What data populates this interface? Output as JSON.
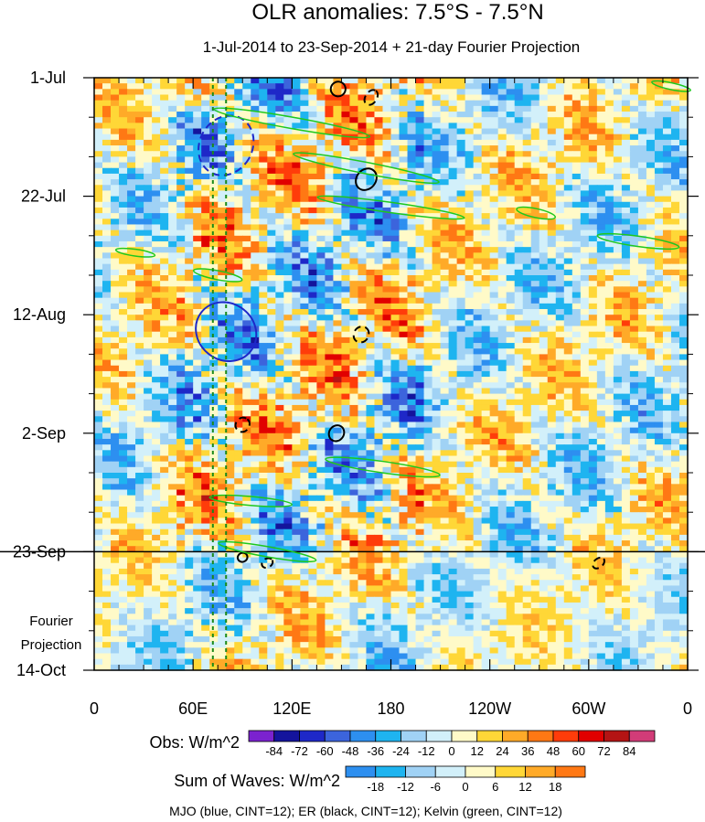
{
  "chart_data": {
    "type": "heatmap",
    "title": "OLR anomalies: 7.5°S - 7.5°N",
    "subtitle": "1-Jul-2014 to 23-Sep-2014 + 21-day Fourier Projection",
    "xlabel": "",
    "ylabel": "",
    "x_ticks": [
      {
        "lon": 0,
        "label": "0"
      },
      {
        "lon": 60,
        "label": "60E"
      },
      {
        "lon": 120,
        "label": "120E"
      },
      {
        "lon": 180,
        "label": "180"
      },
      {
        "lon": 240,
        "label": "120W"
      },
      {
        "lon": 300,
        "label": "60W"
      },
      {
        "lon": 360,
        "label": "0"
      }
    ],
    "xlim": [
      0,
      360
    ],
    "y_ticks": [
      {
        "day": 0,
        "label": "1-Jul"
      },
      {
        "day": 21,
        "label": "22-Jul"
      },
      {
        "day": 42,
        "label": "12-Aug"
      },
      {
        "day": 63,
        "label": "2-Sep"
      },
      {
        "day": 84,
        "label": "23-Sep"
      },
      {
        "day": 105,
        "label": "14-Oct"
      }
    ],
    "ylim_days": [
      0,
      105
    ],
    "projection_start_day": 84,
    "projection_label": [
      "Fourier",
      "Projection"
    ],
    "reference_lines_lon": [
      72,
      80
    ],
    "obs_colorbar": {
      "label": "Obs: W/m^2",
      "levels": [
        "-84",
        "-72",
        "-60",
        "-48",
        "-36",
        "-24",
        "-12",
        "0",
        "12",
        "24",
        "36",
        "48",
        "60",
        "72",
        "84"
      ],
      "colors": [
        "#7b22cf",
        "#14149c",
        "#1e28c8",
        "#3c64dc",
        "#2d8ff0",
        "#1eb4f0",
        "#a0d2f5",
        "#d2f0fa",
        "#fffac8",
        "#ffd737",
        "#ffaa28",
        "#ff7814",
        "#ff3c0a",
        "#e10000",
        "#b41414",
        "#d23c78"
      ]
    },
    "waves_colorbar": {
      "label": "Sum of Waves: W/m^2",
      "levels": [
        "-18",
        "-12",
        "-6",
        "0",
        "6",
        "12",
        "18"
      ],
      "colors": [
        "#2d8ff0",
        "#1eb4f0",
        "#a0d2f5",
        "#d2f0fa",
        "#fffac8",
        "#ffd737",
        "#ffaa28",
        "#ff7814"
      ]
    },
    "footer": "MJO (blue, CINT=12); ER (black, CINT=12); Kelvin (green, CINT=12)",
    "wave_contours": {
      "MJO": {
        "color": "#1e28c8",
        "contours": [
          {
            "lon": 80,
            "day": 12,
            "sign": "neg",
            "rx": 16,
            "ry": 5.5,
            "angle": 30
          },
          {
            "lon": 80,
            "day": 45,
            "sign": "pos",
            "rx": 19,
            "ry": 5,
            "angle": 38
          }
        ]
      },
      "ER": {
        "color": "#000000",
        "contours": [
          {
            "lon": 148,
            "day": 2,
            "sign": "pos",
            "rx": 4.5,
            "ry": 1.3,
            "angle": -35
          },
          {
            "lon": 168,
            "day": 3.5,
            "sign": "neg",
            "rx": 5,
            "ry": 1,
            "angle": -55
          },
          {
            "lon": 165,
            "day": 18,
            "sign": "pos",
            "rx": 7,
            "ry": 1.7,
            "angle": -50
          },
          {
            "lon": 162,
            "day": 45.5,
            "sign": "neg",
            "rx": 5,
            "ry": 1.3,
            "angle": -55
          },
          {
            "lon": 90,
            "day": 61.5,
            "sign": "neg",
            "rx": 4.5,
            "ry": 1.2,
            "angle": -50
          },
          {
            "lon": 147,
            "day": 63,
            "sign": "pos",
            "rx": 5,
            "ry": 1.3,
            "angle": -55
          },
          {
            "lon": 90,
            "day": 85,
            "sign": "pos",
            "rx": 3,
            "ry": 0.8,
            "angle": -25
          },
          {
            "lon": 105,
            "day": 86,
            "sign": "neg",
            "rx": 3.5,
            "ry": 0.8,
            "angle": -30
          },
          {
            "lon": 306,
            "day": 86,
            "sign": "neg",
            "rx": 4,
            "ry": 0.8,
            "angle": -40
          }
        ]
      },
      "Kelvin": {
        "color": "#1ec81e",
        "contours": [
          {
            "lon": 120,
            "day": 8,
            "rx": 48,
            "ry": 1.0,
            "angle": 10
          },
          {
            "lon": 165,
            "day": 16,
            "rx": 45,
            "ry": 1.0,
            "angle": 11
          },
          {
            "lon": 180,
            "day": 23,
            "rx": 45,
            "ry": 0.9,
            "angle": 8
          },
          {
            "lon": 75,
            "day": 35,
            "rx": 15,
            "ry": 0.8,
            "angle": 11
          },
          {
            "lon": 175,
            "day": 69,
            "rx": 35,
            "ry": 1.0,
            "angle": 8
          },
          {
            "lon": 95,
            "day": 75,
            "rx": 25,
            "ry": 0.8,
            "angle": 5
          },
          {
            "lon": 105,
            "day": 84,
            "rx": 30,
            "ry": 0.9,
            "angle": 10
          },
          {
            "lon": 25,
            "day": 31,
            "rx": 12,
            "ry": 0.6,
            "angle": 8
          },
          {
            "lon": 268,
            "day": 24,
            "rx": 12,
            "ry": 0.8,
            "angle": 12
          },
          {
            "lon": 330,
            "day": 29,
            "rx": 25,
            "ry": 0.9,
            "angle": 8
          },
          {
            "lon": 350,
            "day": 1.5,
            "rx": 12,
            "ry": 0.6,
            "angle": 12
          }
        ]
      }
    }
  }
}
